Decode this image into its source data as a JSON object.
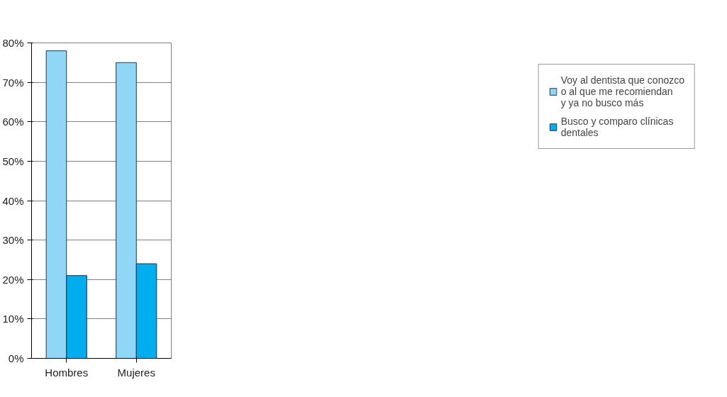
{
  "chart_data": {
    "type": "bar",
    "categories": [
      "Hombres",
      "Mujeres"
    ],
    "series": [
      {
        "name": "Voy al dentista que conozco\no al que me recomiendan\ny ya no busco más",
        "color": "#8fd6f7",
        "values": [
          78,
          75
        ]
      },
      {
        "name": "Busco y comparo clínicas\ndentales",
        "color": "#00adef",
        "values": [
          21,
          24
        ]
      }
    ],
    "ylim": [
      0,
      80
    ],
    "yticks": [
      {
        "value": 0,
        "label": "0%"
      },
      {
        "value": 10,
        "label": "10%"
      },
      {
        "value": 20,
        "label": "20%"
      },
      {
        "value": 30,
        "label": "30%"
      },
      {
        "value": 40,
        "label": "40%"
      },
      {
        "value": 50,
        "label": "50%"
      },
      {
        "value": 60,
        "label": "60%"
      },
      {
        "value": 70,
        "label": "70%"
      },
      {
        "value": 80,
        "label": "80%"
      }
    ],
    "grid": "y",
    "legend": "right"
  }
}
